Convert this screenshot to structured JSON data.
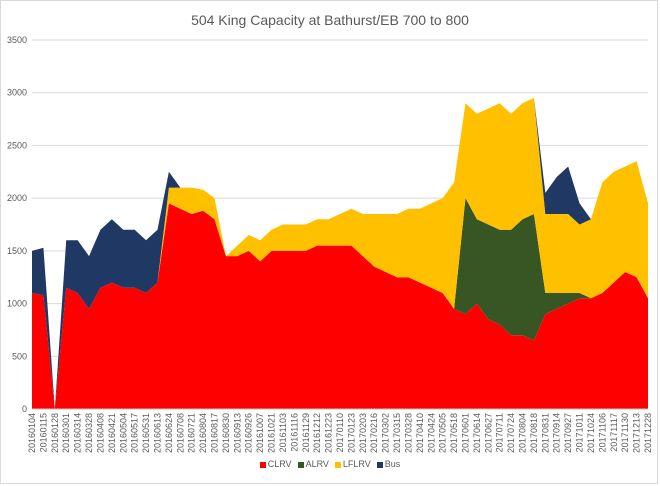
{
  "chart_data": {
    "type": "area",
    "stacked": true,
    "title": "504 King Capacity at Bathurst/EB 700 to 800",
    "xlabel": "",
    "ylabel": "",
    "ylim": [
      0,
      3500
    ],
    "yticks": [
      0,
      500,
      1000,
      1500,
      2000,
      2500,
      3000,
      3500
    ],
    "grid": true,
    "legend_position": "bottom",
    "xtick_labels": [
      "20160104",
      "20160115",
      "20160128",
      "20160301",
      "20160314",
      "20160328",
      "20160408",
      "20160421",
      "20160504",
      "20160517",
      "20160531",
      "20160613",
      "20160624",
      "20160708",
      "20160721",
      "20160804",
      "20160817",
      "20160830",
      "20160913",
      "20160926",
      "20161007",
      "20161021",
      "20161103",
      "20161116",
      "20161129",
      "20161212",
      "20161223",
      "20170110",
      "20170123",
      "20170203",
      "20170216",
      "20170302",
      "20170315",
      "20170328",
      "20170410",
      "20170424",
      "20170505",
      "20170518",
      "20170601",
      "20170614",
      "20170627",
      "20170711",
      "20170724",
      "20170804",
      "20170818",
      "20170831",
      "20170914",
      "20170927",
      "20171011",
      "20171024",
      "20171106",
      "20171117",
      "20171130",
      "20171213",
      "20171228"
    ],
    "series": [
      {
        "name": "CLRV",
        "color": "#ff0000",
        "values": [
          1100,
          1080,
          0,
          1150,
          1100,
          950,
          1150,
          1200,
          1150,
          1150,
          1100,
          1200,
          1950,
          1900,
          1850,
          1880,
          1800,
          1450,
          1450,
          1500,
          1400,
          1500,
          1500,
          1500,
          1500,
          1550,
          1550,
          1550,
          1550,
          1450,
          1350,
          1300,
          1250,
          1250,
          1200,
          1150,
          1100,
          950,
          900,
          1000,
          850,
          800,
          700,
          700,
          650,
          900,
          950,
          1000,
          1050,
          1050,
          1100,
          1200,
          1300,
          1250,
          1050
        ]
      },
      {
        "name": "ALRV",
        "color": "#375623",
        "values": [
          0,
          0,
          0,
          0,
          0,
          0,
          0,
          0,
          0,
          0,
          0,
          0,
          0,
          0,
          0,
          0,
          0,
          0,
          0,
          0,
          0,
          0,
          0,
          0,
          0,
          0,
          0,
          0,
          0,
          0,
          0,
          0,
          0,
          0,
          0,
          0,
          0,
          0,
          1100,
          800,
          900,
          900,
          1000,
          1100,
          1200,
          200,
          150,
          100,
          50,
          0,
          0,
          0,
          0,
          0,
          0
        ]
      },
      {
        "name": "LFLRV",
        "color": "#ffc000",
        "values": [
          0,
          0,
          0,
          0,
          0,
          0,
          0,
          0,
          0,
          0,
          0,
          0,
          150,
          200,
          250,
          200,
          200,
          0,
          100,
          150,
          200,
          200,
          250,
          250,
          250,
          250,
          250,
          300,
          350,
          400,
          500,
          550,
          600,
          650,
          700,
          800,
          900,
          1200,
          900,
          1000,
          1100,
          1200,
          1100,
          1100,
          1100,
          750,
          750,
          750,
          650,
          750,
          1050,
          1050,
          1000,
          1100,
          900
        ]
      },
      {
        "name": "Bus",
        "color": "#1f3864",
        "values": [
          400,
          450,
          0,
          450,
          500,
          500,
          550,
          600,
          550,
          550,
          500,
          500,
          150,
          0,
          0,
          0,
          0,
          0,
          0,
          0,
          0,
          0,
          0,
          0,
          0,
          0,
          0,
          0,
          0,
          0,
          0,
          0,
          0,
          0,
          0,
          0,
          0,
          0,
          0,
          0,
          0,
          0,
          0,
          0,
          0,
          200,
          350,
          450,
          200,
          0,
          0,
          0,
          0,
          0,
          0
        ]
      }
    ]
  }
}
